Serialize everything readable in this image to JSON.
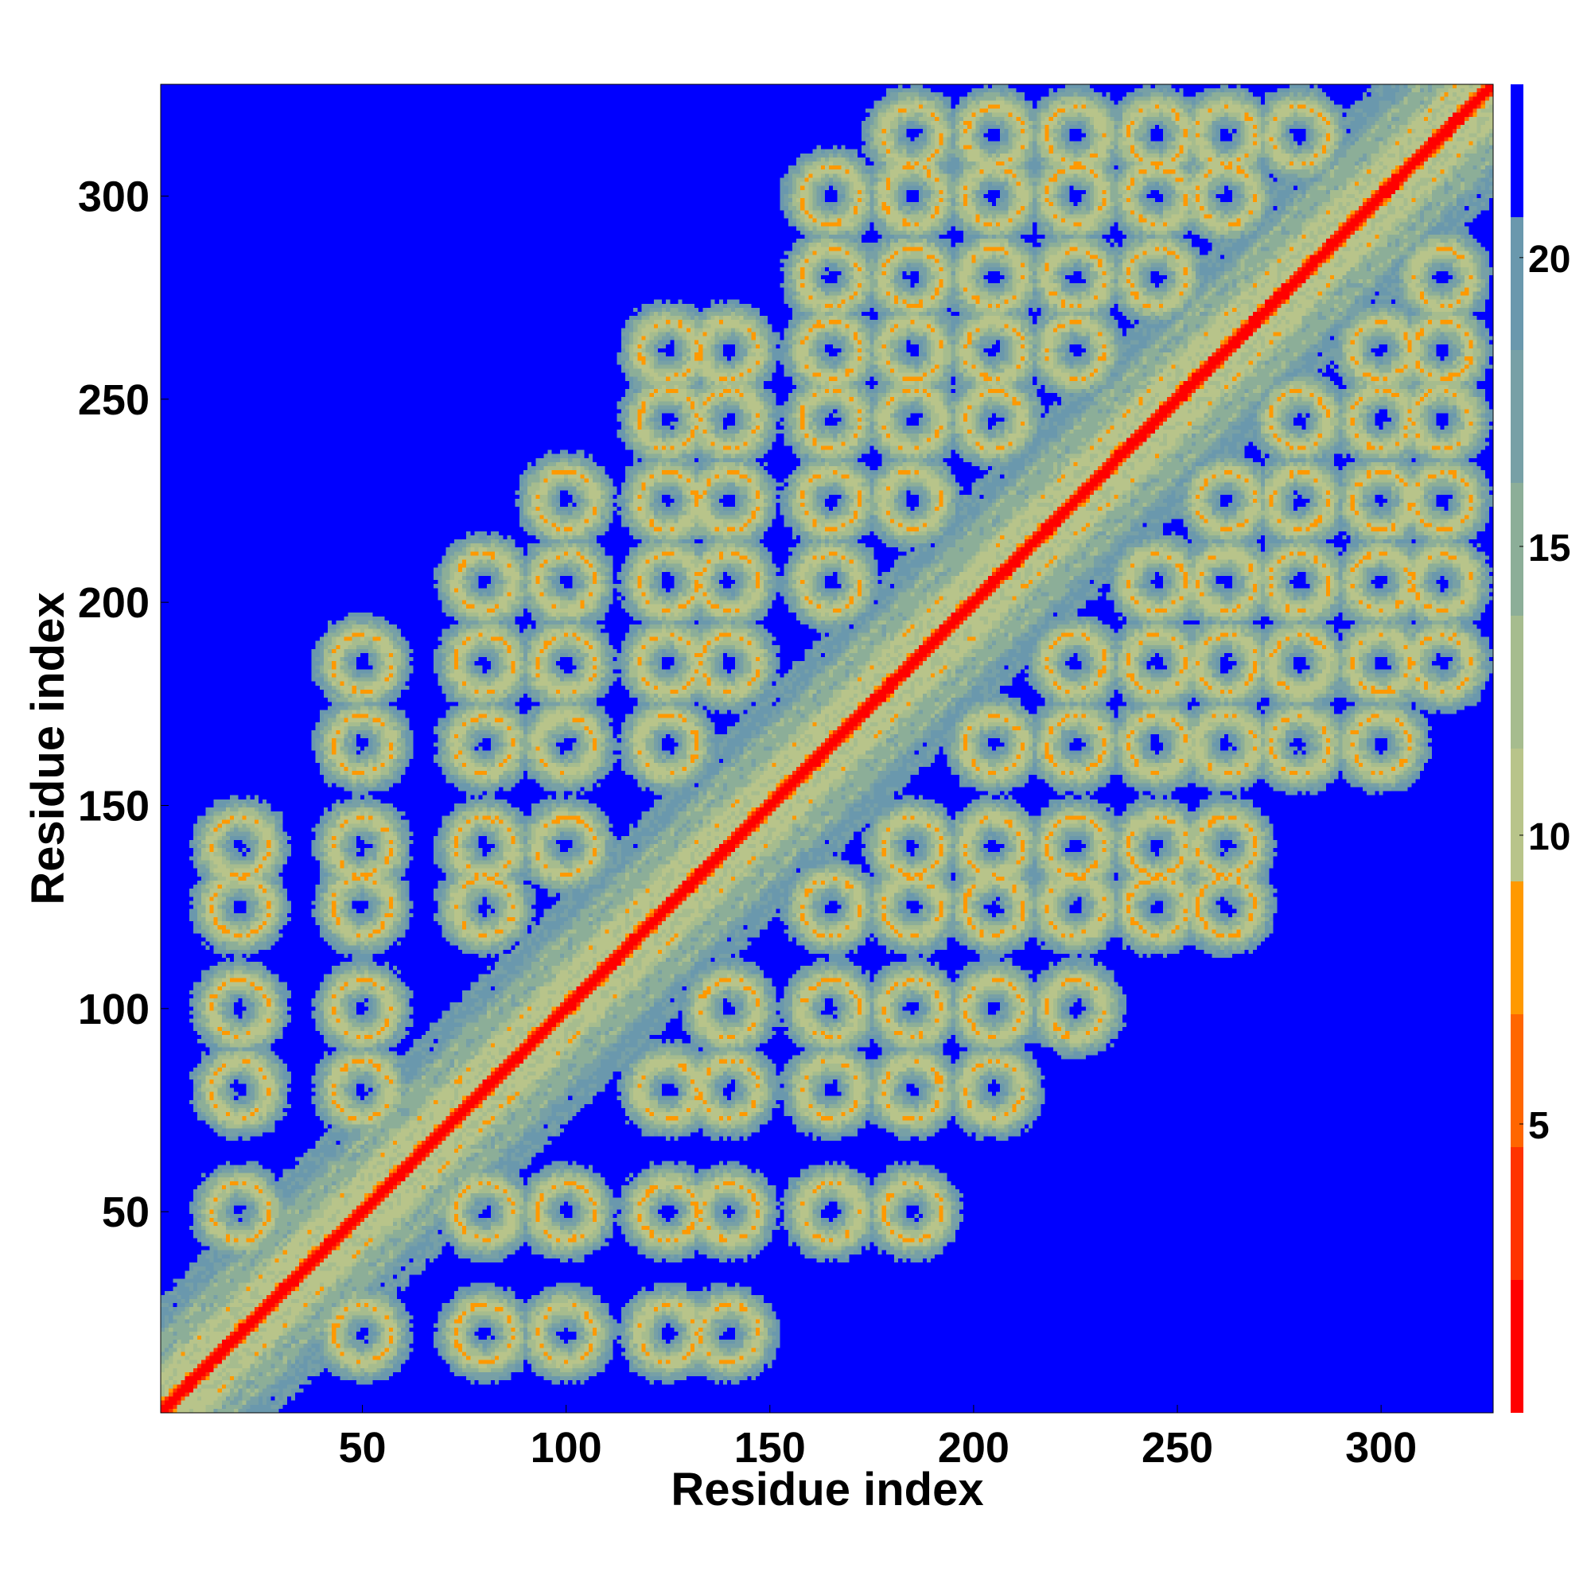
{
  "chart_data": {
    "type": "heatmap",
    "title": "",
    "xlabel": "Residue index",
    "ylabel": "Residue index",
    "n_residues": 327,
    "xlim": [
      1,
      327
    ],
    "ylim": [
      1,
      327
    ],
    "x_ticks": [
      50,
      100,
      150,
      200,
      250,
      300
    ],
    "y_ticks": [
      50,
      100,
      150,
      200,
      250,
      300
    ],
    "colorbar": {
      "ticks": [
        5,
        10,
        15,
        20
      ],
      "range": [
        0,
        23
      ],
      "bands": [
        {
          "max": 2.3,
          "color": "#ff0000"
        },
        {
          "max": 4.6,
          "color": "#ff3300"
        },
        {
          "max": 6.9,
          "color": "#ff6600"
        },
        {
          "max": 9.2,
          "color": "#ff9900"
        },
        {
          "max": 11.5,
          "color": "#b8c48a"
        },
        {
          "max": 13.8,
          "color": "#a6bc8e"
        },
        {
          "max": 16.1,
          "color": "#8cae98"
        },
        {
          "max": 18.4,
          "color": "#77a0a6"
        },
        {
          "max": 20.7,
          "color": "#6a98ad"
        },
        {
          "max": 23.0,
          "color": "#0000ff"
        }
      ]
    },
    "background_color": "#0000ff",
    "structure": {
      "diagonal_value": 0.5,
      "helix_blocks_value_range": [
        5,
        20
      ],
      "beyond_cutoff_value": 23
    }
  }
}
